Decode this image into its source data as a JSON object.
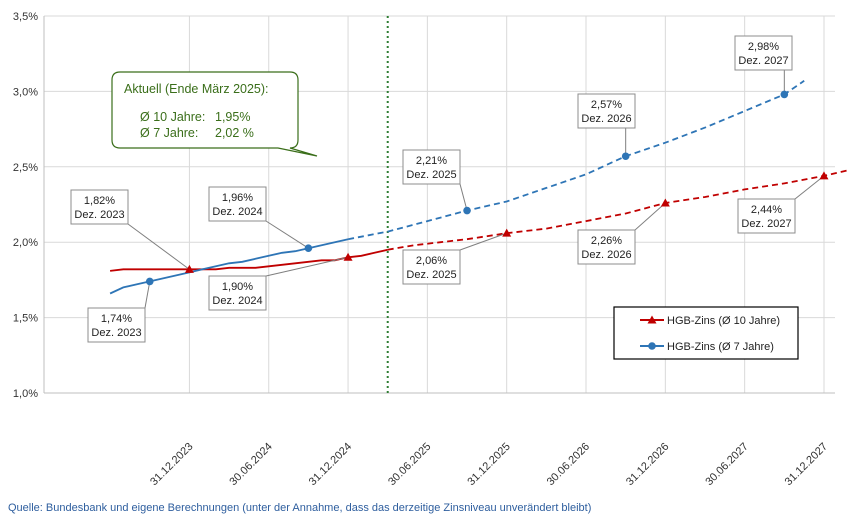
{
  "chart_data": {
    "type": "line",
    "ylim": [
      1.0,
      3.5
    ],
    "y_ticks": [
      {
        "value": 1.0,
        "label": "1,0%"
      },
      {
        "value": 1.5,
        "label": "1,5%"
      },
      {
        "value": 2.0,
        "label": "2,0%"
      },
      {
        "value": 2.5,
        "label": "2,5%"
      },
      {
        "value": 3.0,
        "label": "3,0%"
      },
      {
        "value": 3.5,
        "label": "3,5%"
      }
    ],
    "x_range_months": [
      0,
      51
    ],
    "x_ticks": [
      {
        "month": 6,
        "label": "31.12.2023"
      },
      {
        "month": 12,
        "label": "30.06.2024"
      },
      {
        "month": 18,
        "label": "31.12.2024"
      },
      {
        "month": 24,
        "label": "30.06.2025"
      },
      {
        "month": 30,
        "label": "31.12.2025"
      },
      {
        "month": 36,
        "label": "30.06.2026"
      },
      {
        "month": 42,
        "label": "31.12.2026"
      },
      {
        "month": 48,
        "label": "30.06.2027"
      },
      {
        "month": 54,
        "label": "31.12.2027"
      }
    ],
    "current_marker_month": 21,
    "series": [
      {
        "name": "HGB-Zins (Ø 10 Jahre)",
        "color": "#c00000",
        "marker": "triangle",
        "actual": [
          [
            0,
            1.81
          ],
          [
            1,
            1.82
          ],
          [
            2,
            1.82
          ],
          [
            3,
            1.82
          ],
          [
            4,
            1.82
          ],
          [
            5,
            1.82
          ],
          [
            6,
            1.82
          ],
          [
            7,
            1.82
          ],
          [
            8,
            1.82
          ],
          [
            9,
            1.83
          ],
          [
            10,
            1.83
          ],
          [
            11,
            1.83
          ],
          [
            12,
            1.84
          ],
          [
            13,
            1.85
          ],
          [
            14,
            1.86
          ],
          [
            15,
            1.87
          ],
          [
            16,
            1.88
          ],
          [
            17,
            1.88
          ],
          [
            18,
            1.9
          ],
          [
            19,
            1.91
          ],
          [
            20,
            1.93
          ],
          [
            21,
            1.95
          ]
        ],
        "projected": [
          [
            21,
            1.95
          ],
          [
            23,
            1.98
          ],
          [
            25,
            2.0
          ],
          [
            27,
            2.02
          ],
          [
            30,
            2.06
          ],
          [
            33,
            2.09
          ],
          [
            36,
            2.14
          ],
          [
            39,
            2.19
          ],
          [
            42,
            2.26
          ],
          [
            45,
            2.3
          ],
          [
            48,
            2.35
          ],
          [
            51,
            2.39
          ],
          [
            54,
            2.44
          ],
          [
            56,
            2.48
          ]
        ]
      },
      {
        "name": "HGB-Zins (Ø 7 Jahre)",
        "color": "#2e75b6",
        "marker": "circle",
        "actual": [
          [
            0,
            1.66
          ],
          [
            1,
            1.7
          ],
          [
            2,
            1.72
          ],
          [
            3,
            1.74
          ],
          [
            4,
            1.76
          ],
          [
            5,
            1.78
          ],
          [
            6,
            1.8
          ],
          [
            7,
            1.82
          ],
          [
            8,
            1.84
          ],
          [
            9,
            1.86
          ],
          [
            10,
            1.87
          ],
          [
            11,
            1.89
          ],
          [
            12,
            1.91
          ],
          [
            13,
            1.93
          ],
          [
            14,
            1.94
          ],
          [
            15,
            1.96
          ],
          [
            16,
            1.98
          ],
          [
            17,
            2.0
          ],
          [
            18,
            2.02
          ]
        ],
        "projected": [
          [
            18,
            2.02
          ],
          [
            21,
            2.07
          ],
          [
            24,
            2.14
          ],
          [
            27,
            2.21
          ],
          [
            30,
            2.27
          ],
          [
            33,
            2.36
          ],
          [
            36,
            2.45
          ],
          [
            39,
            2.57
          ],
          [
            42,
            2.66
          ],
          [
            45,
            2.76
          ],
          [
            48,
            2.87
          ],
          [
            51,
            2.98
          ],
          [
            52.5,
            3.07
          ]
        ]
      }
    ],
    "annotations": [
      {
        "id": "red-2023",
        "value": "1,82%",
        "date": "Dez. 2023",
        "series": 0,
        "month": 6,
        "y": 1.82
      },
      {
        "id": "blue-2023",
        "value": "1,74%",
        "date": "Dez. 2023",
        "series": 1,
        "month": 3,
        "y": 1.74
      },
      {
        "id": "blue-2024",
        "value": "1,96%",
        "date": "Dez. 2024",
        "series": 1,
        "month": 15,
        "y": 1.96
      },
      {
        "id": "red-2024",
        "value": "1,90%",
        "date": "Dez. 2024",
        "series": 0,
        "month": 18,
        "y": 1.9
      },
      {
        "id": "blue-2025",
        "value": "2,21%",
        "date": "Dez. 2025",
        "series": 1,
        "month": 27,
        "y": 2.21
      },
      {
        "id": "red-2025",
        "value": "2,06%",
        "date": "Dez. 2025",
        "series": 0,
        "month": 30,
        "y": 2.06
      },
      {
        "id": "blue-2026",
        "value": "2,57%",
        "date": "Dez. 2026",
        "series": 1,
        "month": 39,
        "y": 2.57
      },
      {
        "id": "red-2026",
        "value": "2,26%",
        "date": "Dez. 2026",
        "series": 0,
        "month": 42,
        "y": 2.26
      },
      {
        "id": "blue-2027",
        "value": "2,98%",
        "date": "Dez. 2027",
        "series": 1,
        "month": 51,
        "y": 2.98
      },
      {
        "id": "red-2027",
        "value": "2,44%",
        "date": "Dez. 2027",
        "series": 0,
        "month": 54,
        "y": 2.44
      }
    ],
    "callout": {
      "title": "Aktuell (Ende März 2025):",
      "lines": [
        {
          "label": "Ø 10 Jahre:",
          "value": "1,95%"
        },
        {
          "label": "Ø 7 Jahre:",
          "value": "2,02 %"
        }
      ],
      "color": "#3a6e1a"
    },
    "legend": [
      {
        "label": "HGB-Zins (Ø 10 Jahre)",
        "color": "#c00000",
        "marker": "triangle"
      },
      {
        "label": "HGB-Zins (Ø 7 Jahre)",
        "color": "#2e75b6",
        "marker": "circle"
      }
    ]
  },
  "source_note": "Quelle: Bundesbank und eigene Berechnungen (unter der Annahme, dass das derzeitige Zinsniveau unverändert bleibt)"
}
